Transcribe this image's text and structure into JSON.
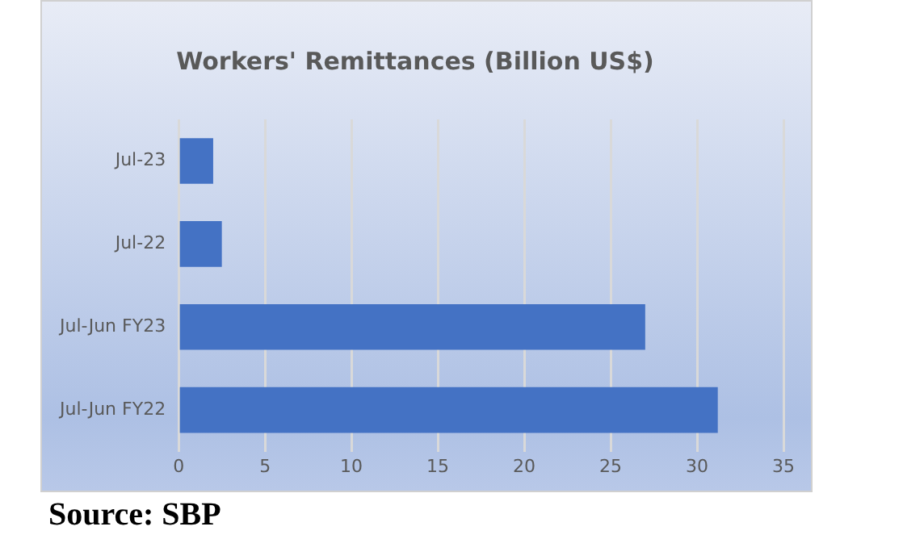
{
  "chart_data": {
    "type": "bar",
    "orientation": "horizontal",
    "title": "Workers' Remittances (Billion US$)",
    "categories": [
      "Jul-23",
      "Jul-22",
      "Jul-Jun FY23",
      "Jul-Jun FY22"
    ],
    "values": [
      2.0,
      2.5,
      27.0,
      31.2
    ],
    "color": "#4472c4",
    "xlim": [
      0,
      35
    ],
    "xticks": [
      0,
      5,
      10,
      15,
      20,
      25,
      30,
      35
    ],
    "grid": "x",
    "annotations": [
      "Source: SBP"
    ]
  }
}
